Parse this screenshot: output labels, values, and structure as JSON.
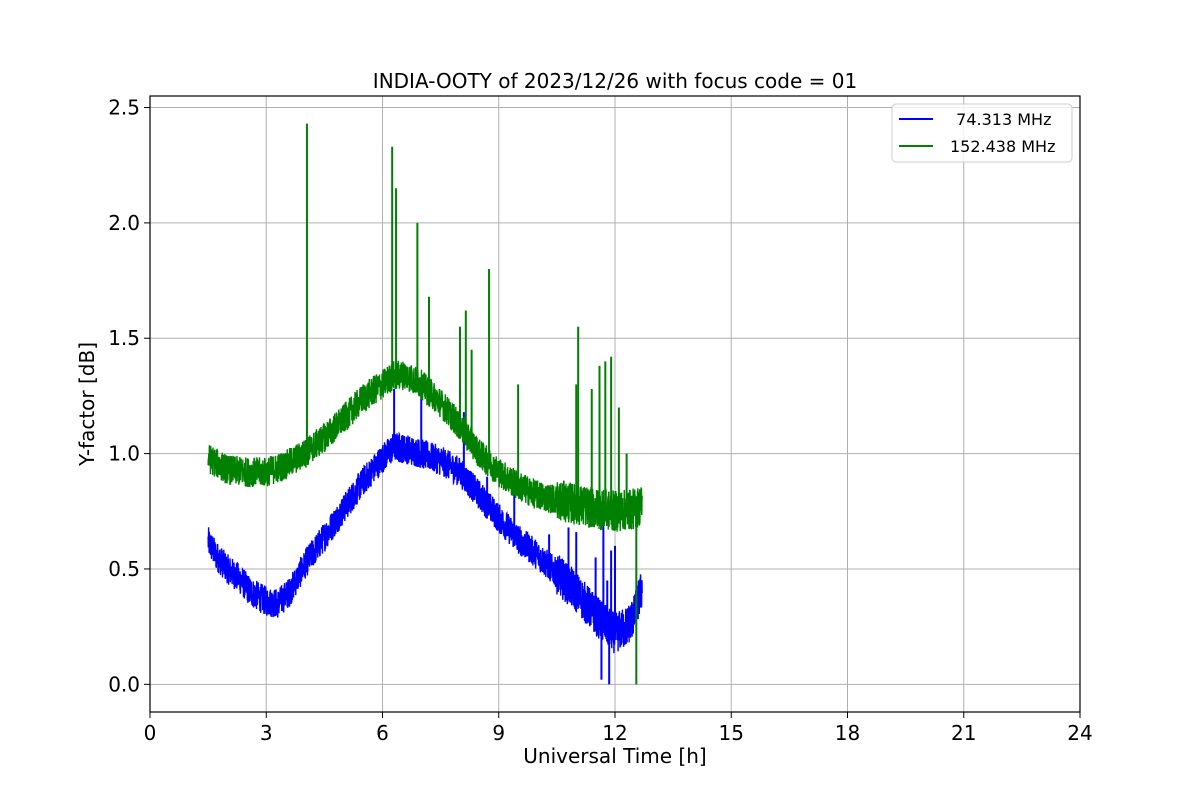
{
  "chart_data": {
    "type": "line",
    "title": "INDIA-OOTY of 2023/12/26 with focus code = 01",
    "xlabel": "Universal Time [h]",
    "ylabel": "Y-factor [dB]",
    "xlim": [
      0,
      24
    ],
    "ylim": [
      -0.12,
      2.55
    ],
    "xticks": [
      0,
      3,
      6,
      9,
      12,
      15,
      18,
      21,
      24
    ],
    "xtick_labels": [
      "0",
      "3",
      "6",
      "9",
      "12",
      "15",
      "18",
      "21",
      "24"
    ],
    "yticks": [
      0.0,
      0.5,
      1.0,
      1.5,
      2.0,
      2.5
    ],
    "ytick_labels": [
      "0.0",
      "0.5",
      "1.0",
      "1.5",
      "2.0",
      "2.5"
    ],
    "grid": true,
    "legend_position": "top-right",
    "series": [
      {
        "name": "  74.313 MHz",
        "color": "#0000ff",
        "points": [
          [
            1.5,
            0.62
          ],
          [
            1.7,
            0.56
          ],
          [
            2.0,
            0.5
          ],
          [
            2.3,
            0.46
          ],
          [
            2.6,
            0.4
          ],
          [
            3.0,
            0.36
          ],
          [
            3.3,
            0.35
          ],
          [
            3.6,
            0.4
          ],
          [
            4.0,
            0.52
          ],
          [
            4.5,
            0.64
          ],
          [
            5.0,
            0.76
          ],
          [
            5.5,
            0.88
          ],
          [
            6.0,
            0.98
          ],
          [
            6.3,
            1.03
          ],
          [
            6.6,
            1.02
          ],
          [
            7.0,
            1.0
          ],
          [
            7.5,
            0.97
          ],
          [
            8.0,
            0.92
          ],
          [
            8.5,
            0.82
          ],
          [
            9.0,
            0.72
          ],
          [
            9.5,
            0.63
          ],
          [
            10.0,
            0.56
          ],
          [
            10.5,
            0.48
          ],
          [
            11.0,
            0.4
          ],
          [
            11.5,
            0.3
          ],
          [
            12.0,
            0.22
          ],
          [
            12.3,
            0.25
          ],
          [
            12.5,
            0.3
          ],
          [
            12.7,
            0.42
          ]
        ],
        "spikes": [
          [
            6.3,
            1.28
          ],
          [
            7.0,
            1.25
          ],
          [
            8.1,
            1.18
          ],
          [
            8.7,
            0.9
          ],
          [
            9.4,
            0.85
          ],
          [
            10.3,
            0.65
          ],
          [
            10.8,
            0.68
          ],
          [
            11.0,
            0.66
          ],
          [
            11.5,
            0.55
          ],
          [
            11.7,
            0.75
          ],
          [
            11.8,
            0.45
          ],
          [
            11.9,
            0.58
          ],
          [
            12.0,
            0.6
          ],
          [
            12.2,
            0.2
          ],
          [
            11.65,
            0.02
          ],
          [
            11.85,
            0.0
          ]
        ]
      },
      {
        "name": "152.438 MHz",
        "color": "#008000",
        "points": [
          [
            1.5,
            0.98
          ],
          [
            1.7,
            0.96
          ],
          [
            2.0,
            0.93
          ],
          [
            2.5,
            0.92
          ],
          [
            3.0,
            0.92
          ],
          [
            3.5,
            0.95
          ],
          [
            4.0,
            1.0
          ],
          [
            4.5,
            1.07
          ],
          [
            5.0,
            1.15
          ],
          [
            5.5,
            1.24
          ],
          [
            6.0,
            1.3
          ],
          [
            6.3,
            1.34
          ],
          [
            6.6,
            1.34
          ],
          [
            7.0,
            1.3
          ],
          [
            7.5,
            1.22
          ],
          [
            8.0,
            1.12
          ],
          [
            8.5,
            1.0
          ],
          [
            9.0,
            0.92
          ],
          [
            9.5,
            0.86
          ],
          [
            10.0,
            0.82
          ],
          [
            10.5,
            0.8
          ],
          [
            11.0,
            0.78
          ],
          [
            11.5,
            0.76
          ],
          [
            12.0,
            0.75
          ],
          [
            12.5,
            0.76
          ],
          [
            12.7,
            0.78
          ]
        ],
        "spikes": [
          [
            4.05,
            2.43
          ],
          [
            6.25,
            2.33
          ],
          [
            6.35,
            2.15
          ],
          [
            6.9,
            2.0
          ],
          [
            7.2,
            1.68
          ],
          [
            8.0,
            1.55
          ],
          [
            8.15,
            1.62
          ],
          [
            8.3,
            1.45
          ],
          [
            8.75,
            1.8
          ],
          [
            9.5,
            1.3
          ],
          [
            11.0,
            1.3
          ],
          [
            11.05,
            1.55
          ],
          [
            11.4,
            1.28
          ],
          [
            11.6,
            1.38
          ],
          [
            11.75,
            1.4
          ],
          [
            11.9,
            1.42
          ],
          [
            12.1,
            1.2
          ],
          [
            12.3,
            1.0
          ],
          [
            12.55,
            0.0
          ]
        ]
      }
    ]
  }
}
